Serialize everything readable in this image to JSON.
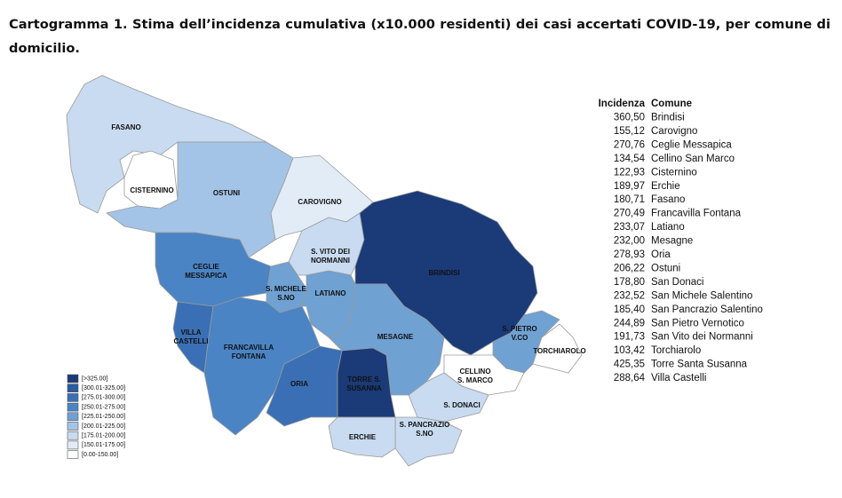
{
  "title": "Cartogramma 1. Stima dell’incidenza cumulativa (x10.000 residenti) dei casi accertati COVID-19, per comune di domicilio.",
  "map": {
    "regions": [
      {
        "label": [
          "FASANO"
        ],
        "color": "#c8dbf0"
      },
      {
        "label": [
          "CISTERNINO"
        ],
        "color": "#ffffff"
      },
      {
        "label": [
          "OSTUNI"
        ],
        "color": "#a3c4e6"
      },
      {
        "label": [
          "CAROVIGNO"
        ],
        "color": "#e2ecf7"
      },
      {
        "label": [
          "S. VITO DEI",
          "NORMANNI"
        ],
        "color": "#c8dbf0"
      },
      {
        "label": [
          "BRINDISI"
        ],
        "color": "#1a3a78"
      },
      {
        "label": [
          "CEGLIE",
          "MESSAPICA"
        ],
        "color": "#4a84c4"
      },
      {
        "label": [
          "S. MICHELE",
          "S.NO"
        ],
        "color": "#6fa1d3"
      },
      {
        "label": [
          "LATIANO"
        ],
        "color": "#6fa1d3"
      },
      {
        "label": [
          "VILLA",
          "CASTELLI"
        ],
        "color": "#3a6fb5"
      },
      {
        "label": [
          "FRANCAVILLA",
          "FONTANA"
        ],
        "color": "#4a84c4"
      },
      {
        "label": [
          "ORIA"
        ],
        "color": "#3a6fb5"
      },
      {
        "label": [
          "MESAGNE"
        ],
        "color": "#6fa1d3"
      },
      {
        "label": [
          "TORRE S.",
          "SUSANNA"
        ],
        "color": "#1a3a78"
      },
      {
        "label": [
          "S. PIETRO",
          "V.CO"
        ],
        "color": "#6fa1d3"
      },
      {
        "label": [
          "TORCHIAROLO"
        ],
        "color": "#ffffff"
      },
      {
        "label": [
          "CELLINO",
          "S. MARCO"
        ],
        "color": "#ffffff"
      },
      {
        "label": [
          "S. DONACI"
        ],
        "color": "#c8dbf0"
      },
      {
        "label": [
          "S. PANCRAZIO",
          "S.NO"
        ],
        "color": "#c8dbf0"
      },
      {
        "label": [
          "ERCHIE"
        ],
        "color": "#c8dbf0"
      }
    ],
    "legend": [
      {
        "label": "[>325.00]",
        "color": "#1a3a78"
      },
      {
        "label": "[300.01-325.00]",
        "color": "#2a5aa0"
      },
      {
        "label": "[275.01-300.00]",
        "color": "#3a6fb5"
      },
      {
        "label": "[250.01-275.00]",
        "color": "#4a84c4"
      },
      {
        "label": "[225.01-250.00]",
        "color": "#6fa1d3"
      },
      {
        "label": "[200.01-225.00]",
        "color": "#a3c4e6"
      },
      {
        "label": "[175.01-200.00]",
        "color": "#c8dbf0"
      },
      {
        "label": "[150.01-175.00]",
        "color": "#e2ecf7"
      },
      {
        "label": "[0.00-150.00]",
        "color": "#ffffff"
      }
    ]
  },
  "table": {
    "header": [
      "Incidenza",
      "Comune"
    ],
    "rows": [
      [
        "360,50",
        "Brindisi"
      ],
      [
        "155,12",
        "Carovigno"
      ],
      [
        "270,76",
        "Ceglie Messapica"
      ],
      [
        "134,54",
        "Cellino San Marco"
      ],
      [
        "122,93",
        "Cisternino"
      ],
      [
        "189,97",
        "Erchie"
      ],
      [
        "180,71",
        "Fasano"
      ],
      [
        "270,49",
        "Francavilla Fontana"
      ],
      [
        "233,07",
        "Latiano"
      ],
      [
        "232,00",
        "Mesagne"
      ],
      [
        "278,93",
        "Oria"
      ],
      [
        "206,22",
        "Ostuni"
      ],
      [
        "178,80",
        "San Donaci"
      ],
      [
        "232,52",
        "San Michele Salentino"
      ],
      [
        "185,40",
        "San Pancrazio Salentino"
      ],
      [
        "244,89",
        "San Pietro Vernotico"
      ],
      [
        "191,73",
        "San Vito dei Normanni"
      ],
      [
        "103,42",
        "Torchiarolo"
      ],
      [
        "425,35",
        "Torre Santa Susanna"
      ],
      [
        "288,64",
        "Villa Castelli"
      ]
    ]
  }
}
